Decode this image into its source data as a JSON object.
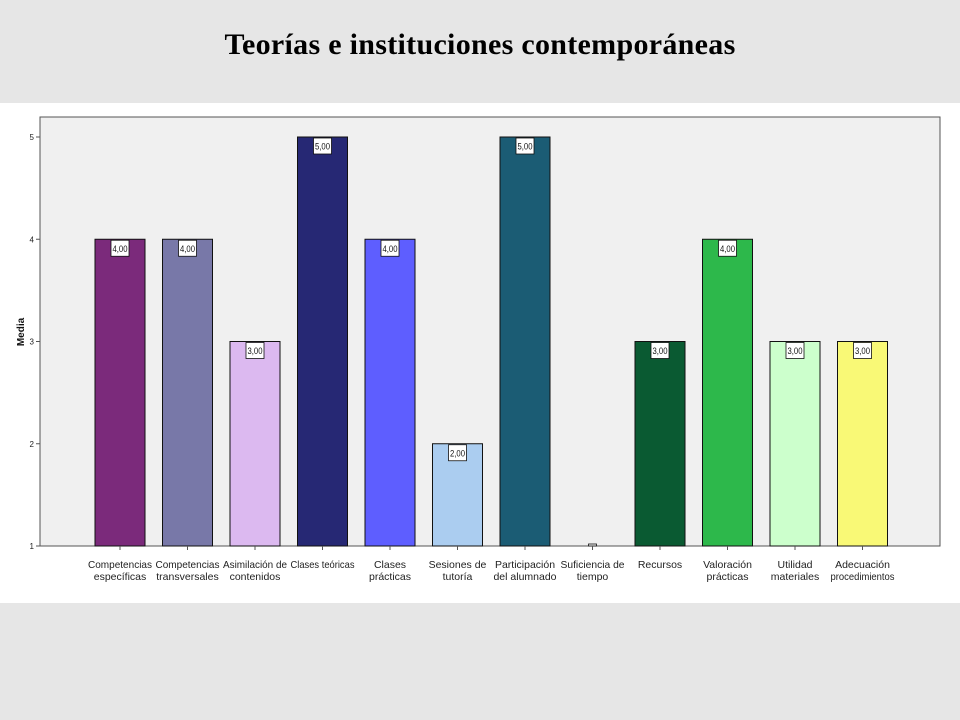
{
  "slide": {
    "title": "Teorías e instituciones contemporáneas"
  },
  "chart_data": {
    "type": "bar",
    "title": "",
    "xlabel": "",
    "ylabel": "Media",
    "ylim": [
      1,
      5
    ],
    "yticks": [
      "1",
      "2",
      "3",
      "4",
      "5"
    ],
    "grid": false,
    "legend": "none",
    "categories": [
      [
        "Competencias",
        "específicas"
      ],
      [
        "Competencias",
        "transversales"
      ],
      [
        "Asimilación de",
        "contenidos"
      ],
      [
        "Clases teóricas"
      ],
      [
        "Clases",
        "prácticas"
      ],
      [
        "Sesiones de",
        "tutoría"
      ],
      [
        "Participación",
        "del alumnado"
      ],
      [
        "Suficiencia de",
        "tiempo"
      ],
      [
        "Recursos"
      ],
      [
        "Valoración",
        "prácticas"
      ],
      [
        "Utilidad",
        "materiales"
      ],
      [
        "Adecuación",
        "procedimientos"
      ]
    ],
    "values": [
      4,
      4,
      3,
      5,
      4,
      2,
      5,
      1,
      3,
      4,
      3,
      3
    ],
    "value_labels": [
      "4,00",
      "4,00",
      "3,00",
      "5,00",
      "4,00",
      "2,00",
      "5,00",
      "",
      "3,00",
      "4,00",
      "3,00",
      "3,00"
    ],
    "colors": [
      "#7b2a7b",
      "#7878a8",
      "#dcb9f0",
      "#262874",
      "#5e5eff",
      "#abcdf0",
      "#1b5c74",
      "#eeeeee",
      "#0a5a32",
      "#2db84b",
      "#ccffcc",
      "#f9f976"
    ]
  }
}
